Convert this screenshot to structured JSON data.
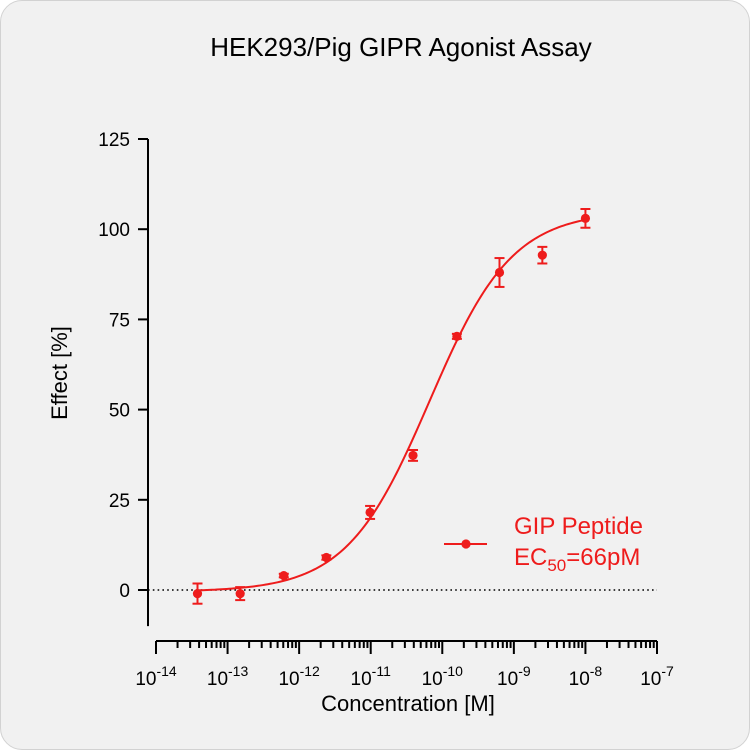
{
  "chart_data": {
    "type": "scatter",
    "title": "HEK293/Pig GIPR Agonist Assay",
    "xlabel": "Concentration [M]",
    "ylabel": "Effect  [%]",
    "x_scale": "log",
    "xlim": [
      1e-14,
      1e-07
    ],
    "ylim": [
      -10,
      125
    ],
    "y_ticks": [
      0,
      25,
      50,
      75,
      100,
      125
    ],
    "y_tick_labels": [
      "0",
      "25",
      "50",
      "75",
      "100",
      "125"
    ],
    "x_ticks": [
      {
        "base": "10",
        "exp": "-14",
        "value": 1e-14
      },
      {
        "base": "10",
        "exp": "-13",
        "value": 1e-13
      },
      {
        "base": "10",
        "exp": "-12",
        "value": 1e-12
      },
      {
        "base": "10",
        "exp": "-11",
        "value": 1e-11
      },
      {
        "base": "10",
        "exp": "-10",
        "value": 1e-10
      },
      {
        "base": "10",
        "exp": "-9",
        "value": 1e-09
      },
      {
        "base": "10",
        "exp": "-8",
        "value": 1e-08
      },
      {
        "base": "10",
        "exp": "-7",
        "value": 1e-07
      }
    ],
    "zero_line": "dotted",
    "grid": false,
    "legend_position": "right",
    "series": [
      {
        "label_main": "GIP Peptide",
        "label_ec_prefix": "EC",
        "label_ec_sub": "50",
        "label_ec_suffix": "=66pM",
        "color": "#ee1c1c",
        "points": [
          {
            "x": 3.8e-14,
            "y": -1.0,
            "err": 2.8
          },
          {
            "x": 1.5e-13,
            "y": -1.0,
            "err": 1.8
          },
          {
            "x": 6.1e-13,
            "y": 4.0,
            "err": 0.5
          },
          {
            "x": 2.4e-12,
            "y": 9.0,
            "err": 0.6
          },
          {
            "x": 9.8e-12,
            "y": 21.5,
            "err": 1.8
          },
          {
            "x": 3.9e-11,
            "y": 37.3,
            "err": 1.5
          },
          {
            "x": 1.6e-10,
            "y": 70.3,
            "err": 0.7
          },
          {
            "x": 6.3e-10,
            "y": 88.0,
            "err": 4.0
          },
          {
            "x": 2.5e-09,
            "y": 92.8,
            "err": 2.3
          },
          {
            "x": 1e-08,
            "y": 103.0,
            "err": 2.6
          }
        ],
        "fit": {
          "bottom": -0.5,
          "top": 105.0,
          "ec50": 6.6e-11,
          "hill": 0.75
        }
      }
    ]
  }
}
